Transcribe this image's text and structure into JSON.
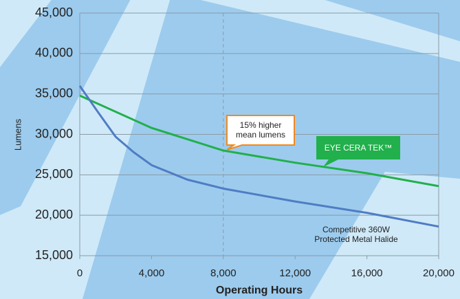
{
  "chart_data": {
    "type": "line",
    "x_label": "Operating Hours",
    "y_label": "Lumens",
    "series": [
      {
        "name": "EYE CERA TEK™",
        "color": "#21b04b",
        "x": [
          0,
          4000,
          8000,
          12000,
          16000,
          20000
        ],
        "values": [
          34800,
          30800,
          28000,
          26500,
          25200,
          23600
        ]
      },
      {
        "name": "Competitive 360W Protected Metal Halide",
        "color": "#4f7cc4",
        "x": [
          0,
          1000,
          2000,
          3000,
          4000,
          6000,
          8000,
          12000,
          16000,
          20000
        ],
        "values": [
          36000,
          32800,
          29700,
          27800,
          26200,
          24400,
          23300,
          21700,
          20300,
          18600
        ]
      }
    ],
    "xlim": [
      0,
      20000
    ],
    "xticks": [
      0,
      {
        "value": 4000,
        "label": "4,000"
      },
      {
        "value": 8000,
        "label": "8,000"
      },
      {
        "value": 12000,
        "label": "12,000"
      },
      {
        "value": 16000,
        "label": "16,000"
      },
      {
        "value": 20000,
        "label": "20,000"
      }
    ],
    "ylim": [
      15000,
      45000
    ],
    "yticks": [
      {
        "value": 15000,
        "label": "15,000"
      },
      {
        "value": 20000,
        "label": "20,000"
      },
      {
        "value": 25000,
        "label": "25,000"
      },
      {
        "value": 30000,
        "label": "30,000"
      },
      {
        "value": 35000,
        "label": "35,000"
      },
      {
        "value": 40000,
        "label": "40,000"
      },
      {
        "value": 45000,
        "label": "45,000"
      }
    ],
    "grid": true,
    "reference_line_x": 8000,
    "annotation": "15% higher mean lumens"
  }
}
